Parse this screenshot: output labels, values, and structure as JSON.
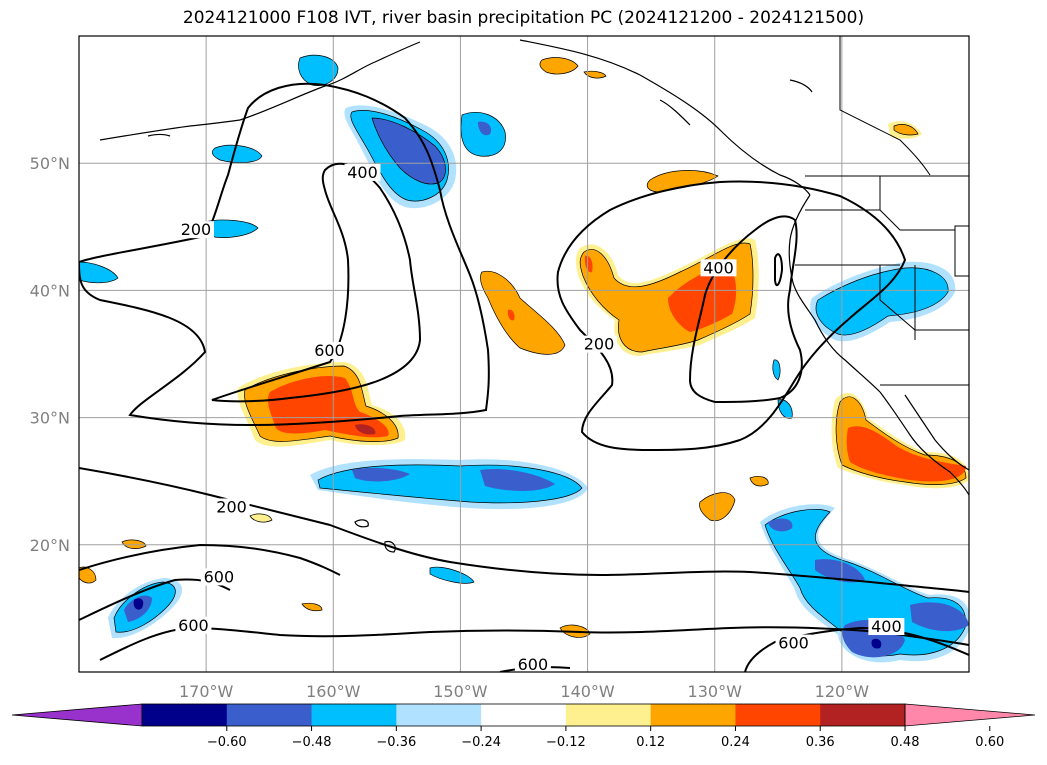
{
  "title": "2024121000 F108 IVT, river basin precipitation PC (2024121200 - 2024121500)",
  "map": {
    "lon_range": [
      -180,
      -110
    ],
    "lat_range": [
      10,
      60
    ],
    "lon_ticks": [
      {
        "value": -170,
        "label": "170°W"
      },
      {
        "value": -160,
        "label": "160°W"
      },
      {
        "value": -150,
        "label": "150°W"
      },
      {
        "value": -140,
        "label": "140°W"
      },
      {
        "value": -130,
        "label": "130°W"
      },
      {
        "value": -120,
        "label": "120°W"
      }
    ],
    "lat_ticks": [
      {
        "value": 20,
        "label": "20°N"
      },
      {
        "value": 30,
        "label": "30°N"
      },
      {
        "value": 40,
        "label": "40°N"
      },
      {
        "value": 50,
        "label": "50°N"
      }
    ],
    "grid": true
  },
  "ivt_contour_labels": [
    {
      "text": "200",
      "lon": -170.8,
      "lat": 44.5
    },
    {
      "text": "400",
      "lon": -157.7,
      "lat": 49.0
    },
    {
      "text": "600",
      "lon": -160.3,
      "lat": 35.0
    },
    {
      "text": "200",
      "lon": -139.1,
      "lat": 35.5
    },
    {
      "text": "400",
      "lon": -129.7,
      "lat": 41.5
    },
    {
      "text": "200",
      "lon": -168.0,
      "lat": 22.7
    },
    {
      "text": "600",
      "lon": -169.0,
      "lat": 17.2
    },
    {
      "text": "600",
      "lon": -171.0,
      "lat": 13.4
    },
    {
      "text": "600",
      "lon": -144.3,
      "lat": 10.3
    },
    {
      "text": "600",
      "lon": -123.8,
      "lat": 12.0
    },
    {
      "text": "400",
      "lon": -116.5,
      "lat": 13.3
    }
  ],
  "colorbar": {
    "colors": [
      "#9932cc",
      "#00008b",
      "#3a5fcd",
      "#00bfff",
      "#b0e2ff",
      "#ffffff",
      "#fff08f",
      "#ffa500",
      "#ff4500",
      "#b22222",
      "#ff88aa"
    ],
    "ticks": [
      "−0.60",
      "−0.48",
      "−0.36",
      "−0.24",
      "−0.12",
      "0.12",
      "0.24",
      "0.36",
      "0.48",
      "0.60"
    ]
  },
  "palette": {
    "dark_navy": "#00008b",
    "royal_blue": "#3a5fcd",
    "deep_sky": "#00bfff",
    "light_blue": "#b0e2ff",
    "light_yellow": "#fff08f",
    "orange": "#ffa500",
    "orange_red": "#ff4500",
    "brick": "#b22222",
    "pink": "#ff88aa",
    "purple": "#9932cc"
  }
}
